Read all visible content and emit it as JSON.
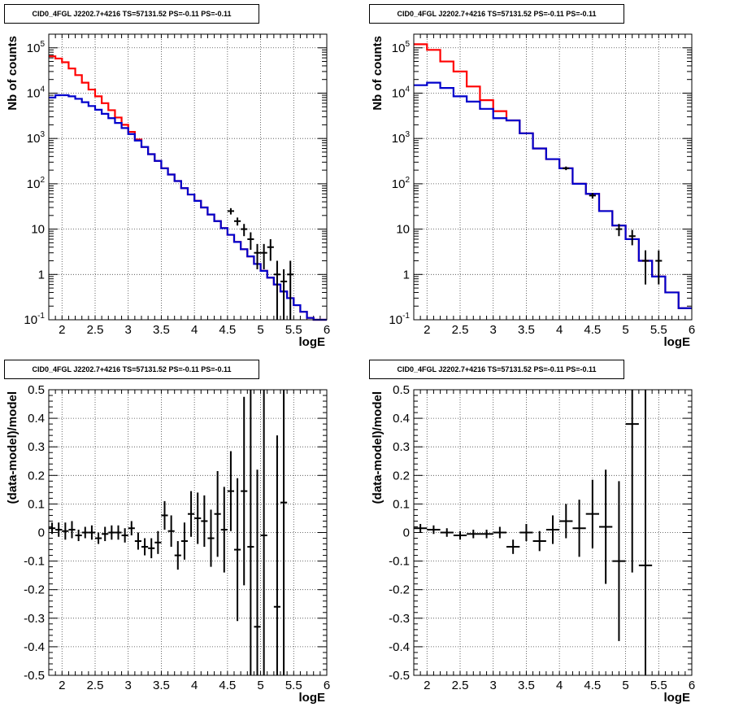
{
  "pads": [
    {
      "title": "CID0_4FGL J2202.7+4216 TS=57131.52 PS=-0.11 PS=-0.11",
      "chart_data": {
        "type": "line",
        "xlabel": "logE",
        "ylabel": "Nb of counts",
        "xlim": [
          1.8,
          6.0
        ],
        "ylim": [
          0.1,
          200000
        ],
        "yscale": "log",
        "grid": true,
        "xticks": [
          "2",
          "2.5",
          "3",
          "3.5",
          "4",
          "4.5",
          "5",
          "5.5",
          "6"
        ],
        "yticks": [
          "10^-1",
          "1",
          "10",
          "10^2",
          "10^3",
          "10^4",
          "10^5"
        ],
        "colors": {
          "total": "#ff0000",
          "model": "#0000cc",
          "data": "#000000"
        },
        "bin_edges": [
          1.8,
          1.9,
          2.0,
          2.1,
          2.2,
          2.3,
          2.4,
          2.5,
          2.6,
          2.7,
          2.8,
          2.9,
          3.0,
          3.1,
          3.2,
          3.3,
          3.4,
          3.5,
          3.6,
          3.7,
          3.8,
          3.9,
          4.0,
          4.1,
          4.2,
          4.3,
          4.4,
          4.5,
          4.6,
          4.7,
          4.8,
          4.9,
          5.0,
          5.1,
          5.2,
          5.3,
          5.4,
          5.5,
          5.6,
          5.7,
          5.8,
          5.9,
          6.0
        ],
        "series": [
          {
            "name": "",
            "role": "total",
            "values": [
              65000,
              58000,
              48000,
              35000,
              25000,
              17000,
              12000,
              8500,
              6000,
              4200,
              2900,
              2000,
              1400,
              950,
              650,
              450,
              320,
              220,
              160,
              115,
              80,
              58,
              42,
              30,
              21,
              15,
              10.5,
              7.5,
              5.2,
              3.6,
              2.5,
              1.7,
              1.2,
              0.85,
              0.6,
              0.42,
              0.3,
              0.21,
              0.15,
              0.11,
              0.1,
              0.1
            ]
          },
          {
            "name": "",
            "role": "model",
            "values": [
              8000,
              9000,
              9000,
              8500,
              7500,
              6300,
              5200,
              4300,
              3500,
              2800,
              2200,
              1700,
              1250,
              900,
              650,
              450,
              320,
              220,
              160,
              115,
              80,
              58,
              42,
              30,
              21,
              15,
              10.5,
              7.5,
              5.2,
              3.6,
              2.5,
              1.7,
              1.2,
              0.85,
              0.6,
              0.42,
              0.3,
              0.21,
              0.15,
              0.11,
              0.1,
              0.1
            ]
          },
          {
            "name": "",
            "role": "data",
            "points": [
              [
                4.55,
                25,
                4
              ],
              [
                4.65,
                15,
                3
              ],
              [
                4.75,
                10,
                3
              ],
              [
                4.85,
                6,
                2.5
              ],
              [
                4.95,
                3,
                1.7
              ],
              [
                5.05,
                3,
                1.7
              ],
              [
                5.15,
                4,
                2
              ],
              [
                5.25,
                1,
                1
              ],
              [
                5.35,
                0.7,
                0.6
              ],
              [
                5.45,
                1,
                1
              ]
            ]
          }
        ]
      }
    },
    {
      "title": "CID0_4FGL J2202.7+4216 TS=57131.52 PS=-0.11 PS=-0.11",
      "chart_data": {
        "type": "line",
        "xlabel": "logE",
        "ylabel": "Nb of counts",
        "xlim": [
          1.8,
          6.0
        ],
        "ylim": [
          0.1,
          200000
        ],
        "yscale": "log",
        "grid": true,
        "xticks": [
          "2",
          "2.5",
          "3",
          "3.5",
          "4",
          "4.5",
          "5",
          "5.5",
          "6"
        ],
        "yticks": [
          "10^-1",
          "1",
          "10",
          "10^2",
          "10^3",
          "10^4",
          "10^5"
        ],
        "colors": {
          "total": "#ff0000",
          "model": "#0000cc",
          "data": "#000000"
        },
        "bin_edges": [
          1.8,
          2.0,
          2.2,
          2.4,
          2.6,
          2.8,
          3.0,
          3.2,
          3.4,
          3.6,
          3.8,
          4.0,
          4.2,
          4.4,
          4.6,
          4.8,
          5.0,
          5.2,
          5.4,
          5.6,
          5.8,
          6.0
        ],
        "series": [
          {
            "name": "",
            "role": "total",
            "values": [
              120000,
              90000,
              50000,
              30000,
              14000,
              7000,
              4000,
              2500,
              1300,
              600,
              350,
              220,
              100,
              60,
              25,
              12,
              6,
              2,
              0.9,
              0.4,
              0.18
            ]
          },
          {
            "name": "",
            "role": "model",
            "values": [
              15000,
              17000,
              13000,
              8500,
              6500,
              4500,
              2800,
              2500,
              1300,
              600,
              350,
              220,
              100,
              60,
              25,
              12,
              6,
              2,
              0.9,
              0.4,
              0.18
            ]
          },
          {
            "name": "",
            "role": "data",
            "points": [
              [
                4.1,
                220,
                20
              ],
              [
                4.5,
                55,
                8
              ],
              [
                4.9,
                10,
                3
              ],
              [
                5.1,
                7,
                2.6
              ],
              [
                5.3,
                2,
                1.4
              ],
              [
                5.5,
                2,
                1.4
              ]
            ]
          }
        ]
      }
    },
    {
      "title": "CID0_4FGL J2202.7+4216 TS=57131.52 PS=-0.11 PS=-0.11",
      "chart_data": {
        "type": "scatter",
        "xlabel": "logE",
        "ylabel": "(data-model)/model",
        "xlim": [
          1.8,
          6.0
        ],
        "ylim": [
          -0.5,
          0.5
        ],
        "grid": true,
        "xticks": [
          "2",
          "2.5",
          "3",
          "3.5",
          "4",
          "4.5",
          "5",
          "5.5",
          "6"
        ],
        "yticks": [
          "-0.5",
          "-0.4",
          "-0.3",
          "-0.2",
          "-0.1",
          "0",
          "0.1",
          "0.2",
          "0.3",
          "0.4",
          "0.5"
        ],
        "xerr": 0.05,
        "points": [
          [
            1.85,
            0.015,
            0.02
          ],
          [
            1.95,
            0.01,
            0.025
          ],
          [
            2.05,
            0.005,
            0.03
          ],
          [
            2.15,
            0.01,
            0.03
          ],
          [
            2.25,
            -0.01,
            0.02
          ],
          [
            2.35,
            0.0,
            0.02
          ],
          [
            2.45,
            0.0,
            0.025
          ],
          [
            2.55,
            -0.02,
            0.02
          ],
          [
            2.65,
            -0.005,
            0.025
          ],
          [
            2.75,
            0.0,
            0.025
          ],
          [
            2.85,
            0.0,
            0.025
          ],
          [
            2.95,
            -0.01,
            0.025
          ],
          [
            3.05,
            0.015,
            0.025
          ],
          [
            3.15,
            -0.03,
            0.03
          ],
          [
            3.25,
            -0.05,
            0.03
          ],
          [
            3.35,
            -0.055,
            0.035
          ],
          [
            3.45,
            -0.035,
            0.04
          ],
          [
            3.55,
            0.06,
            0.05
          ],
          [
            3.65,
            0.005,
            0.055
          ],
          [
            3.75,
            -0.08,
            0.05
          ],
          [
            3.85,
            -0.03,
            0.065
          ],
          [
            3.95,
            0.065,
            0.08
          ],
          [
            4.05,
            0.05,
            0.09
          ],
          [
            4.15,
            0.04,
            0.09
          ],
          [
            4.25,
            -0.02,
            0.1
          ],
          [
            4.35,
            0.065,
            0.15
          ],
          [
            4.45,
            0.01,
            0.15
          ],
          [
            4.55,
            0.145,
            0.14
          ],
          [
            4.65,
            -0.06,
            0.25
          ],
          [
            4.75,
            0.145,
            0.33
          ],
          [
            4.85,
            -0.05,
            0.55
          ],
          [
            4.95,
            -0.33,
            0.55
          ],
          [
            5.05,
            -0.01,
            0.6
          ],
          [
            5.25,
            -0.26,
            0.6
          ],
          [
            5.35,
            0.105,
            0.7
          ]
        ]
      }
    },
    {
      "title": "CID0_4FGL J2202.7+4216 TS=57131.52 PS=-0.11 PS=-0.11",
      "chart_data": {
        "type": "scatter",
        "xlabel": "logE",
        "ylabel": "(data-model)/model",
        "xlim": [
          1.8,
          6.0
        ],
        "ylim": [
          -0.5,
          0.5
        ],
        "grid": true,
        "xticks": [
          "2",
          "2.5",
          "3",
          "3.5",
          "4",
          "4.5",
          "5",
          "5.5",
          "6"
        ],
        "yticks": [
          "-0.5",
          "-0.4",
          "-0.3",
          "-0.2",
          "-0.1",
          "0",
          "0.1",
          "0.2",
          "0.3",
          "0.4",
          "0.5"
        ],
        "xerr": 0.1,
        "points": [
          [
            1.9,
            0.015,
            0.015
          ],
          [
            2.1,
            0.01,
            0.015
          ],
          [
            2.3,
            0.0,
            0.015
          ],
          [
            2.5,
            -0.01,
            0.015
          ],
          [
            2.7,
            -0.005,
            0.015
          ],
          [
            2.9,
            -0.005,
            0.015
          ],
          [
            3.1,
            0.0,
            0.02
          ],
          [
            3.3,
            -0.05,
            0.025
          ],
          [
            3.5,
            0.0,
            0.03
          ],
          [
            3.7,
            -0.03,
            0.035
          ],
          [
            3.9,
            0.01,
            0.05
          ],
          [
            4.1,
            0.04,
            0.06
          ],
          [
            4.3,
            0.015,
            0.1
          ],
          [
            4.5,
            0.065,
            0.12
          ],
          [
            4.7,
            0.02,
            0.2
          ],
          [
            4.9,
            -0.1,
            0.28
          ],
          [
            5.1,
            0.38,
            0.52
          ],
          [
            5.3,
            -0.115,
            0.62
          ]
        ]
      }
    }
  ]
}
